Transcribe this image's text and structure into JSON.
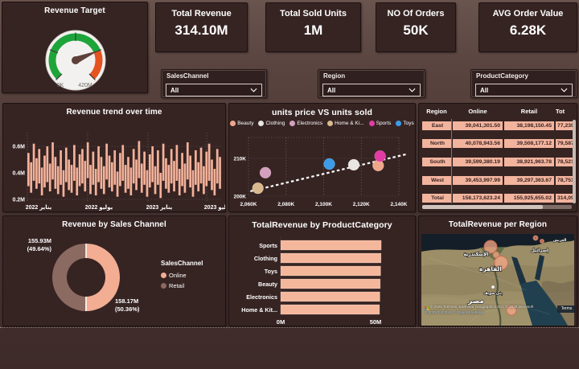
{
  "ui": {
    "kpis": [
      {
        "label": "Total Revenue",
        "value": "314.10M"
      },
      {
        "label": "Total Sold Units",
        "value": "1M"
      },
      {
        "label": "NO Of Orders",
        "value": "50K"
      },
      {
        "label": "AVG Order Value",
        "value": "6.28K"
      }
    ],
    "slicers": [
      {
        "label": "SalesChannel",
        "value": "All"
      },
      {
        "label": "Region",
        "value": "All"
      },
      {
        "label": "ProductCategory",
        "value": "All"
      }
    ]
  },
  "chart_data": [
    {
      "type": "gauge",
      "title": "Revenue Target",
      "min_label": "0K",
      "max_label": "420M",
      "value": 314.1,
      "max": 420,
      "value_fraction": 0.748,
      "colors": {
        "progress": "#1ea53a",
        "remainder": "#e55320",
        "needle": "#5d4038",
        "face": "#f3f1ef"
      }
    },
    {
      "type": "area",
      "title": "Revenue trend over time",
      "y_ticks": [
        "0.6M",
        "0.4M",
        "0.2M"
      ],
      "x_ticks": [
        "يناير 2022",
        "يوليو 2022",
        "يناير 2023",
        "يوليو 2023"
      ],
      "ylim": [
        0.2,
        0.65
      ],
      "unit": "M",
      "color": "#f4b29a",
      "high": [
        0.55,
        0.48,
        0.62,
        0.51,
        0.58,
        0.44,
        0.53,
        0.6,
        0.47,
        0.63,
        0.52,
        0.45,
        0.57,
        0.42,
        0.59,
        0.5,
        0.46,
        0.61,
        0.44,
        0.54,
        0.58,
        0.49,
        0.63,
        0.46,
        0.56,
        0.43,
        0.6,
        0.52,
        0.45,
        0.62,
        0.53,
        0.48,
        0.57,
        0.41,
        0.55,
        0.61,
        0.46,
        0.52,
        0.44,
        0.58,
        0.5,
        0.64,
        0.47,
        0.56,
        0.42,
        0.54,
        0.6,
        0.45,
        0.57,
        0.4,
        0.62,
        0.51,
        0.46,
        0.58,
        0.49,
        0.61,
        0.43,
        0.55,
        0.47,
        0.63,
        0.53,
        0.42,
        0.57,
        0.48,
        0.59,
        0.45,
        0.56,
        0.62,
        0.5,
        0.43,
        0.58,
        0.52
      ],
      "low": [
        0.3,
        0.25,
        0.34,
        0.28,
        0.32,
        0.23,
        0.29,
        0.33,
        0.26,
        0.35,
        0.28,
        0.24,
        0.31,
        0.22,
        0.33,
        0.27,
        0.25,
        0.34,
        0.23,
        0.3,
        0.32,
        0.26,
        0.36,
        0.24,
        0.31,
        0.23,
        0.33,
        0.28,
        0.24,
        0.35,
        0.29,
        0.26,
        0.31,
        0.22,
        0.3,
        0.34,
        0.25,
        0.28,
        0.23,
        0.32,
        0.27,
        0.36,
        0.25,
        0.31,
        0.22,
        0.29,
        0.33,
        0.24,
        0.31,
        0.21,
        0.34,
        0.28,
        0.25,
        0.32,
        0.26,
        0.34,
        0.23,
        0.3,
        0.25,
        0.35,
        0.29,
        0.22,
        0.31,
        0.26,
        0.32,
        0.24,
        0.3,
        0.34,
        0.27,
        0.23,
        0.32,
        0.28
      ]
    },
    {
      "type": "scatter",
      "title": "units price VS units sold",
      "x_ticks": [
        "2,060K",
        "2,080K",
        "2,100K",
        "2,120K",
        "2,140K"
      ],
      "y_ticks": [
        "210K",
        "200K"
      ],
      "xlim": [
        2052,
        2148
      ],
      "ylim": [
        198,
        213
      ],
      "trendline": {
        "x1": 2061,
        "y1": 201.3,
        "x2": 2144,
        "y2": 211.1
      },
      "series": [
        {
          "name": "Beauty",
          "color": "#efa78c",
          "x": 2129,
          "y": 208.1
        },
        {
          "name": "Clothing",
          "color": "#e8e5e2",
          "x": 2116,
          "y": 208.3
        },
        {
          "name": "Electronics",
          "color": "#d5a0bd",
          "x": 2069,
          "y": 206.2
        },
        {
          "name": "Home & Ki...",
          "color": "#d9ba8e",
          "x": 2065,
          "y": 202.1
        },
        {
          "name": "Sports",
          "color": "#e23ba3",
          "x": 2130,
          "y": 210.6
        },
        {
          "name": "Toys",
          "color": "#3d9ce8",
          "x": 2103,
          "y": 208.5
        }
      ]
    },
    {
      "type": "table",
      "columns": [
        "Region",
        "Online",
        "Retail",
        "Tot"
      ],
      "rows": [
        [
          "East",
          "39,041,301.50",
          "38,198,150.45",
          "77,239,"
        ],
        [
          "North",
          "40,078,943.56",
          "39,508,177.12",
          "79,587,"
        ],
        [
          "South",
          "39,599,380.19",
          "38,921,963.78",
          "78,521,"
        ],
        [
          "West",
          "39,453,997.99",
          "39,297,363.67",
          "78,751,"
        ],
        [
          "Total",
          "158,173,623.24",
          "155,925,655.02",
          "314,099,"
        ]
      ]
    },
    {
      "type": "pie",
      "title": "Revenue by Sales Channel",
      "legend_title": "SalesChannel",
      "slices": [
        {
          "name": "Online",
          "value_label": "158.17M",
          "pct": 50.36,
          "pct_label": "(50.36%)",
          "color": "#f2ad92"
        },
        {
          "name": "Retail",
          "value_label": "155.93M",
          "pct": 49.64,
          "pct_label": "(49.64%)",
          "color": "#8b6a61"
        }
      ]
    },
    {
      "type": "bar",
      "title": "TotalRevenue by ProductCategory",
      "categories": [
        "Sports",
        "Clothing",
        "Toys",
        "Beauty",
        "Electronics",
        "Home & Kit..."
      ],
      "values": [
        53.0,
        52.9,
        52.7,
        52.5,
        52.3,
        52.1
      ],
      "x_ticks": [
        "0M",
        "50M"
      ],
      "xlim": [
        0,
        57
      ],
      "color": "#f5b79c"
    },
    {
      "type": "map",
      "title": "TotalRevenue per Region",
      "place_labels": [
        {
          "text": "الإسكندرية",
          "x": 68,
          "y": 27,
          "size": 6
        },
        {
          "text": "القاهرة",
          "x": 86,
          "y": 46,
          "size": 7.5
        },
        {
          "text": "بني سويف",
          "x": 89,
          "y": 75,
          "size": 4.5
        },
        {
          "text": "مصر",
          "x": 68,
          "y": 86,
          "size": 9
        },
        {
          "text": "إسرائيل",
          "x": 147,
          "y": 22,
          "size": 5.5
        },
        {
          "text": "العريش",
          "x": 172,
          "y": 9,
          "size": 4.5
        }
      ],
      "bubbles": [
        {
          "x": 86,
          "y": 16,
          "r": 8
        },
        {
          "x": 93,
          "y": 26,
          "r": 4
        },
        {
          "x": 99,
          "y": 36,
          "r": 8.5
        },
        {
          "x": 112,
          "y": 95,
          "r": 6
        },
        {
          "x": 142,
          "y": 5,
          "r": 3
        },
        {
          "x": 150,
          "y": 9,
          "r": 2.5
        }
      ],
      "marker_color": "#f2a686",
      "attribution": "© 2025 TomTom, Earthstar Geographics SIO, © 2025 Microsoft",
      "attribution2": "© 2025 TomTom, © OpenStreetMap",
      "terms_label": "Terms"
    }
  ]
}
